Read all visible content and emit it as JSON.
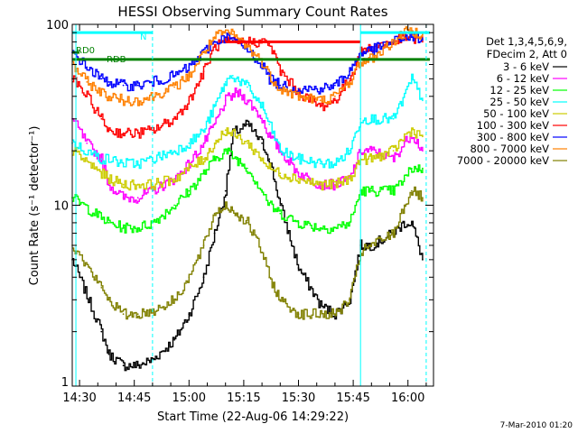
{
  "chart_data": {
    "type": "line",
    "title": "HESSI Observing Summary Count Rates",
    "xlabel": "Start Time (22-Aug-06 14:29:22)",
    "ylabel": "Count Rate (s⁻¹ detector⁻¹)",
    "y_scale": "log",
    "ylim": [
      1,
      100
    ],
    "xlim": [
      "14:28",
      "16:07"
    ],
    "x_ticks": [
      "14:30",
      "14:45",
      "15:00",
      "15:15",
      "15:30",
      "15:45",
      "16:00"
    ],
    "y_ticks": [
      "1",
      "10",
      "100"
    ],
    "grid": false,
    "legend_position": "right",
    "legend_header": [
      "Det 1,3,4,5,6,9,",
      "FDecim 2, Att 0"
    ],
    "series": [
      {
        "name": "3 - 6 keV",
        "color": "#000000",
        "x": [
          "14:28",
          "14:36",
          "14:38",
          "14:42",
          "14:46",
          "14:50",
          "14:56",
          "15:00",
          "15:04",
          "15:07",
          "15:10",
          "15:12",
          "15:16",
          "15:20",
          "15:22",
          "15:25",
          "15:30",
          "15:36",
          "15:40",
          "15:44",
          "15:47",
          "15:50",
          "15:56",
          "15:59",
          "16:01",
          "16:04"
        ],
        "y": [
          5,
          2,
          1.5,
          1.3,
          1.3,
          1.4,
          1.8,
          2.5,
          4,
          7,
          12,
          25,
          28,
          22,
          18,
          10,
          4.5,
          2.8,
          2.5,
          3,
          6,
          6,
          7,
          8,
          8,
          5
        ]
      },
      {
        "name": "6 - 12 keV",
        "color": "#ff00ff",
        "x": [
          "14:28",
          "14:32",
          "14:36",
          "14:38",
          "14:42",
          "14:46",
          "14:50",
          "14:56",
          "15:00",
          "15:04",
          "15:07",
          "15:10",
          "15:13",
          "15:16",
          "15:20",
          "15:22",
          "15:25",
          "15:30",
          "15:36",
          "15:40",
          "15:44",
          "15:47",
          "15:50",
          "15:56",
          "15:59",
          "16:01",
          "16:04"
        ],
        "y": [
          30,
          22,
          18,
          13,
          11,
          11,
          12,
          14,
          17,
          22,
          28,
          38,
          42,
          38,
          30,
          24,
          20,
          15,
          13,
          13,
          14,
          20,
          20,
          18,
          22,
          25,
          20
        ]
      },
      {
        "name": "12 - 25 keV",
        "color": "#00ff00",
        "x": [
          "14:28",
          "14:36",
          "14:38",
          "14:42",
          "14:46",
          "14:50",
          "14:56",
          "15:00",
          "15:04",
          "15:07",
          "15:10",
          "15:13",
          "15:16",
          "15:20",
          "15:22",
          "15:25",
          "15:30",
          "15:36",
          "15:40",
          "15:44",
          "15:47",
          "15:50",
          "15:56",
          "15:59",
          "16:01",
          "16:04"
        ],
        "y": [
          11,
          8.5,
          8,
          7.5,
          7.5,
          8,
          10,
          12,
          15,
          18,
          20,
          18,
          16,
          12,
          10,
          9,
          8,
          7.5,
          7.5,
          8,
          12,
          12,
          12,
          14,
          16,
          16
        ]
      },
      {
        "name": "25 - 50 keV",
        "color": "#00ffff",
        "x": [
          "14:28",
          "14:36",
          "14:38",
          "14:42",
          "14:46",
          "14:50",
          "14:56",
          "15:00",
          "15:04",
          "15:07",
          "15:10",
          "15:12",
          "15:16",
          "15:20",
          "15:22",
          "15:25",
          "15:30",
          "15:36",
          "15:40",
          "15:44",
          "15:47",
          "15:50",
          "15:56",
          "15:59",
          "16:01",
          "16:04"
        ],
        "y": [
          22,
          18,
          18,
          17,
          17,
          18,
          20,
          22,
          26,
          35,
          48,
          52,
          45,
          35,
          28,
          20,
          18,
          17,
          17,
          20,
          30,
          30,
          30,
          40,
          50,
          38
        ]
      },
      {
        "name": "50 - 100 keV",
        "color": "#cccc00",
        "x": [
          "14:28",
          "14:36",
          "14:38",
          "14:42",
          "14:46",
          "14:50",
          "14:56",
          "15:00",
          "15:04",
          "15:07",
          "15:10",
          "15:13",
          "15:16",
          "15:20",
          "15:22",
          "15:25",
          "15:30",
          "15:36",
          "15:40",
          "15:44",
          "15:47",
          "15:50",
          "15:56",
          "15:59",
          "16:01",
          "16:04"
        ],
        "y": [
          20,
          15,
          14,
          13,
          13,
          13,
          14,
          16,
          18,
          22,
          26,
          24,
          22,
          18,
          16,
          15,
          14,
          13,
          13,
          14,
          18,
          18,
          20,
          24,
          26,
          24
        ]
      },
      {
        "name": "100 - 300 keV",
        "color": "#ff0000",
        "x": [
          "14:28",
          "14:32",
          "14:36",
          "14:38",
          "14:42",
          "14:46",
          "14:50",
          "14:56",
          "15:00",
          "15:04",
          "15:07",
          "15:10",
          "15:13",
          "15:16",
          "15:20",
          "15:22",
          "15:25",
          "15:30",
          "15:36",
          "15:40",
          "15:44",
          "15:47",
          "15:50",
          "15:56",
          "15:59",
          "16:01",
          "16:04"
        ],
        "y": [
          50,
          40,
          30,
          26,
          25,
          25,
          26,
          30,
          38,
          55,
          75,
          80,
          80,
          80,
          80,
          78,
          55,
          42,
          35,
          38,
          50,
          70,
          75,
          80,
          85,
          85,
          80
        ]
      },
      {
        "name": "300 - 800 keV",
        "color": "#0000ff",
        "x": [
          "14:28",
          "14:32",
          "14:36",
          "14:38",
          "14:42",
          "14:46",
          "14:50",
          "14:56",
          "15:00",
          "15:04",
          "15:07",
          "15:10",
          "15:12",
          "15:16",
          "15:20",
          "15:22",
          "15:25",
          "15:30",
          "15:36",
          "15:40",
          "15:44",
          "15:47",
          "15:50",
          "15:56",
          "15:59",
          "16:01",
          "16:04"
        ],
        "y": [
          70,
          58,
          50,
          48,
          46,
          46,
          48,
          52,
          58,
          70,
          80,
          85,
          82,
          72,
          60,
          50,
          46,
          44,
          44,
          46,
          55,
          70,
          72,
          80,
          85,
          85,
          82
        ]
      },
      {
        "name": "800 - 7000 keV",
        "color": "#ff8000",
        "x": [
          "14:28",
          "14:32",
          "14:36",
          "14:38",
          "14:42",
          "14:46",
          "14:50",
          "14:56",
          "15:00",
          "15:04",
          "15:07",
          "15:10",
          "15:12",
          "15:16",
          "15:20",
          "15:22",
          "15:25",
          "15:30",
          "15:36",
          "15:40",
          "15:44",
          "15:47",
          "15:50",
          "15:56",
          "15:59",
          "16:01",
          "16:04"
        ],
        "y": [
          60,
          48,
          42,
          40,
          38,
          38,
          40,
          45,
          52,
          70,
          85,
          90,
          88,
          75,
          62,
          52,
          44,
          40,
          38,
          40,
          48,
          62,
          65,
          80,
          90,
          92,
          88
        ]
      },
      {
        "name": "7000 - 20000 keV",
        "color": "#808000",
        "x": [
          "14:28",
          "14:36",
          "14:38",
          "14:42",
          "14:46",
          "14:50",
          "14:56",
          "15:00",
          "15:04",
          "15:07",
          "15:10",
          "15:13",
          "15:16",
          "15:20",
          "15:22",
          "15:25",
          "15:30",
          "15:36",
          "15:40",
          "15:44",
          "15:47",
          "15:50",
          "15:56",
          "15:59",
          "16:01",
          "16:04"
        ],
        "y": [
          6,
          3.5,
          3,
          2.5,
          2.5,
          2.6,
          3,
          4,
          6,
          9,
          10,
          9,
          8,
          5.5,
          4,
          3,
          2.5,
          2.5,
          2.5,
          3,
          5.5,
          6,
          7,
          10,
          12,
          11
        ]
      }
    ],
    "flags": [
      {
        "label": "N",
        "color": "#00ffff",
        "y": 90,
        "x_start": "14:28",
        "x_end": "14:50"
      },
      {
        "label": "",
        "color": "#00ffff",
        "y": 90,
        "x_start": "15:47",
        "x_end": "16:06"
      },
      {
        "label": "RD0",
        "color": "#008000",
        "y": 70,
        "x_start": "14:28",
        "x_end": "14:30"
      },
      {
        "label": "RDB",
        "color": "#008000",
        "y": 64,
        "x_start": "14:28",
        "x_end": "16:06"
      },
      {
        "label": "",
        "color": "#ff0000",
        "y": 80,
        "x_start": "15:10",
        "x_end": "15:47"
      }
    ],
    "vertical_markers": [
      {
        "x": "14:29",
        "color": "#00ffff",
        "style": "solid"
      },
      {
        "x": "14:50",
        "color": "#00ffff",
        "style": "dashed"
      },
      {
        "x": "15:47",
        "color": "#00ffff",
        "style": "solid"
      },
      {
        "x": "16:05",
        "color": "#00ffff",
        "style": "dashed"
      }
    ]
  },
  "footer": {
    "date_stamp": "7-Mar-2010 01:20"
  }
}
